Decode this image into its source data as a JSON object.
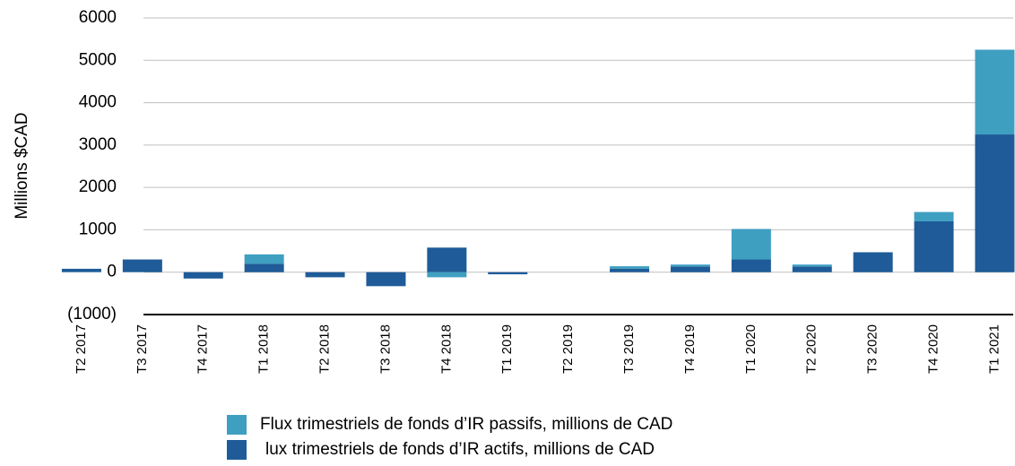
{
  "chart_data": {
    "type": "stacked_bar",
    "y_axis_label": "Millions $CAD",
    "categories": [
      "T2 2017",
      "T3 2017",
      "T4 2017",
      "T1 2018",
      "T2 2018",
      "T3 2018",
      "T4 2018",
      "T1 2019",
      "T2 2019",
      "T3 2019",
      "T4 2019",
      "T1 2020",
      "T2 2020",
      "T3 2020",
      "T4 2020",
      "T1 2021"
    ],
    "series": [
      {
        "name": "lux trimestriels de fonds d’IR actifs, millions de CAD",
        "color": "#1f5b98",
        "values": [
          80,
          300,
          -150,
          200,
          -120,
          -330,
          580,
          -50,
          0,
          80,
          130,
          300,
          130,
          470,
          1200,
          3250
        ]
      },
      {
        "name": "Flux trimestriels de fonds d’IR passifs, millions de CAD",
        "color": "#3f9fc1",
        "values": [
          0,
          0,
          0,
          220,
          0,
          0,
          -120,
          0,
          0,
          60,
          50,
          720,
          50,
          0,
          220,
          2000
        ]
      }
    ],
    "ylim": [
      -1000,
      6000
    ],
    "yticks": [
      {
        "value": -1000,
        "label": "(1000)"
      },
      0,
      1000,
      2000,
      3000,
      4000,
      5000,
      6000
    ],
    "grid": true
  }
}
